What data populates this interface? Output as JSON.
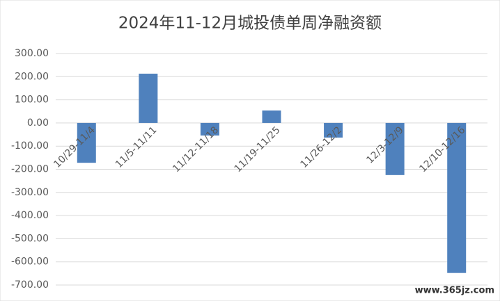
{
  "chart_data": {
    "type": "bar",
    "title": "2024年11-12月城投债单周净融资额",
    "categories": [
      "10/29-11/4",
      "11/5-11/11",
      "11/12-11/18",
      "11/19-11/25",
      "11/26-12/2",
      "12/3-12/9",
      "12/10-12/16"
    ],
    "values": [
      -172,
      213,
      -54,
      54,
      -63,
      -225,
      -648
    ],
    "color": "#4f81bd",
    "ylim": [
      -700,
      300
    ],
    "yticks": [
      {
        "value": -700,
        "label": "-700.00"
      },
      {
        "value": -600,
        "label": "-600.00"
      },
      {
        "value": -500,
        "label": "-500.00"
      },
      {
        "value": -400,
        "label": "-400.00"
      },
      {
        "value": -300,
        "label": "-300.00"
      },
      {
        "value": -200,
        "label": "-200.00"
      },
      {
        "value": -100,
        "label": "-100.00"
      },
      {
        "value": 0,
        "label": "0.00"
      },
      {
        "value": 100,
        "label": "100.00"
      },
      {
        "value": 200,
        "label": "200.00"
      },
      {
        "value": 300,
        "label": "300.00"
      }
    ],
    "grid": true,
    "watermark": "www.365jz.com"
  }
}
